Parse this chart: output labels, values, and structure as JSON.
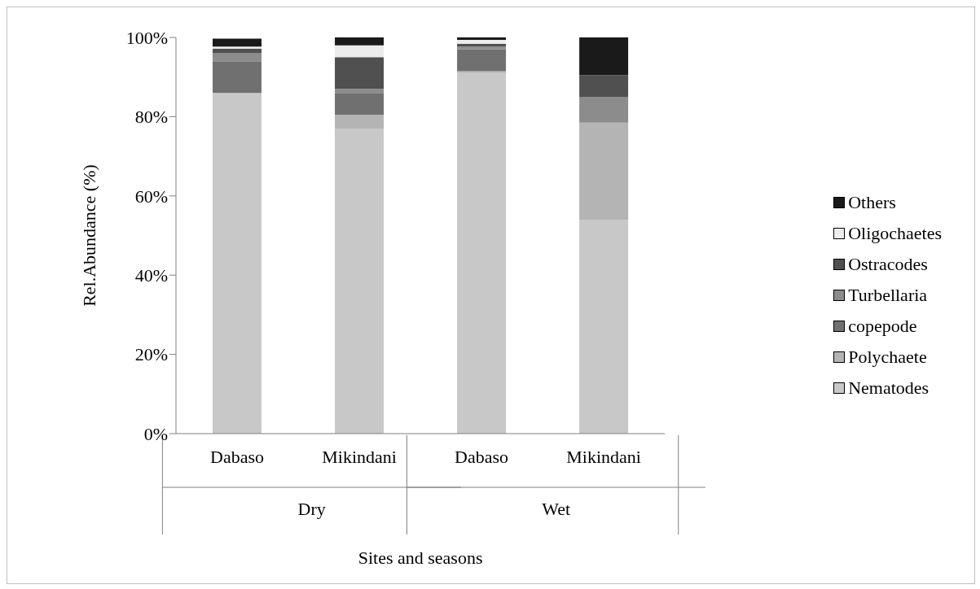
{
  "chart_data": {
    "type": "bar",
    "stacked": true,
    "xlabel": "Sites and seasons",
    "ylabel": "Rel.Abundance (%)",
    "categories": [
      "Dabaso",
      "Mikindani",
      "Dabaso",
      "Mikindani"
    ],
    "annotations": [
      "Dry",
      "Wet"
    ],
    "series": [
      {
        "name": "Nematodes",
        "color": "#c8c8c8",
        "values": [
          86,
          77,
          91,
          54
        ]
      },
      {
        "name": "Polychaete",
        "color": "#b4b4b4",
        "values": [
          null,
          3.5,
          0.5,
          24.5
        ]
      },
      {
        "name": "copepode",
        "color": "#707070",
        "values": [
          8,
          5.5,
          5.5,
          0
        ]
      },
      {
        "name": "Turbellaria",
        "color": "#8c8c8c",
        "values": [
          2,
          1,
          0.7,
          6.5
        ]
      },
      {
        "name": "Ostracodes",
        "color": "#505050",
        "values": [
          1.2,
          8,
          0.7,
          5.5
        ]
      },
      {
        "name": "Oligochaetes",
        "color": "#ececec",
        "values": [
          0.5,
          3,
          1,
          0
        ]
      },
      {
        "name": "Others",
        "color": "#1a1a1a",
        "values": [
          2,
          2,
          0.6,
          9.5
        ]
      }
    ],
    "ylim": [
      0,
      100
    ],
    "yticks": [
      {
        "value": 0,
        "label": "0%"
      },
      {
        "value": 20,
        "label": "20%"
      },
      {
        "value": 40,
        "label": "40%"
      },
      {
        "value": 60,
        "label": "60%"
      },
      {
        "value": 80,
        "label": "80%"
      },
      {
        "value": 100,
        "label": "100%"
      }
    ],
    "legend": "right",
    "grid": false
  }
}
